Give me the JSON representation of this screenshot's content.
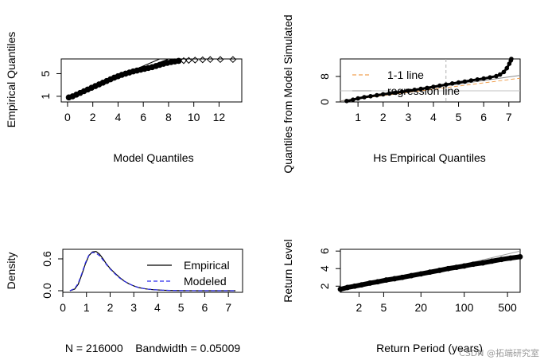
{
  "figure": {
    "watermark": "CSDN @拓端研究室"
  },
  "chart_data": [
    {
      "id": "p1",
      "type": "scatter",
      "title": "",
      "xlabel": "Model Quantiles",
      "ylabel": "Empirical Quantiles",
      "xlim": [
        -0.5,
        13.8
      ],
      "ylim": [
        0.0,
        7.6
      ],
      "xticks": [
        0,
        2,
        4,
        6,
        8,
        10,
        12
      ],
      "yticks": [
        1,
        5
      ],
      "points": [
        [
          0.1,
          0.8
        ],
        [
          0.4,
          1.0
        ],
        [
          0.7,
          1.3
        ],
        [
          1.0,
          1.6
        ],
        [
          1.3,
          1.9
        ],
        [
          1.6,
          2.2
        ],
        [
          1.9,
          2.5
        ],
        [
          2.2,
          2.8
        ],
        [
          2.5,
          3.1
        ],
        [
          2.8,
          3.4
        ],
        [
          3.1,
          3.7
        ],
        [
          3.4,
          4.0
        ],
        [
          3.7,
          4.3
        ],
        [
          4.0,
          4.55
        ],
        [
          4.3,
          4.8
        ],
        [
          4.6,
          5.0
        ],
        [
          4.9,
          5.2
        ],
        [
          5.2,
          5.4
        ],
        [
          5.5,
          5.55
        ],
        [
          5.8,
          5.7
        ],
        [
          6.1,
          5.85
        ],
        [
          6.4,
          6.0
        ],
        [
          6.7,
          6.15
        ],
        [
          7.0,
          6.35
        ],
        [
          7.3,
          6.55
        ],
        [
          7.6,
          6.75
        ],
        [
          7.9,
          6.9
        ],
        [
          8.2,
          7.05
        ],
        [
          8.5,
          7.15
        ],
        [
          8.8,
          7.25
        ],
        [
          9.2,
          7.3
        ],
        [
          9.6,
          7.35
        ],
        [
          10.1,
          7.4
        ],
        [
          10.7,
          7.45
        ],
        [
          11.3,
          7.5
        ],
        [
          12.1,
          7.5
        ],
        [
          13.1,
          7.5
        ]
      ],
      "reference_lines": [
        {
          "name": "line_a",
          "from": [
            0.1,
            0.7
          ],
          "to": [
            7.3,
            7.6
          ]
        },
        {
          "name": "line_b",
          "from": [
            0.1,
            0.8
          ],
          "to": [
            8.0,
            7.6
          ]
        }
      ]
    },
    {
      "id": "p2",
      "type": "scatter",
      "title": "",
      "xlabel": "Hs Empirical Quantiles",
      "ylabel": "Quantiles from Model Simulated",
      "xlim": [
        0.3,
        7.45
      ],
      "ylim": [
        0.0,
        13.5
      ],
      "xticks": [
        1,
        2,
        3,
        4,
        5,
        6,
        7
      ],
      "yticks": [
        0,
        8
      ],
      "vline_x": 4.5,
      "hline_y": 3.5,
      "points": [
        [
          0.55,
          0.3
        ],
        [
          0.8,
          0.7
        ],
        [
          1.0,
          1.1
        ],
        [
          1.25,
          1.5
        ],
        [
          1.5,
          1.8
        ],
        [
          1.75,
          2.1
        ],
        [
          2.0,
          2.4
        ],
        [
          2.25,
          2.65
        ],
        [
          2.5,
          2.9
        ],
        [
          2.75,
          3.2
        ],
        [
          3.0,
          3.5
        ],
        [
          3.25,
          3.8
        ],
        [
          3.5,
          4.1
        ],
        [
          3.75,
          4.4
        ],
        [
          4.0,
          4.75
        ],
        [
          4.25,
          5.1
        ],
        [
          4.5,
          5.45
        ],
        [
          4.75,
          5.8
        ],
        [
          5.0,
          6.1
        ],
        [
          5.25,
          6.4
        ],
        [
          5.5,
          6.75
        ],
        [
          5.75,
          7.05
        ],
        [
          6.0,
          7.35
        ],
        [
          6.25,
          7.7
        ],
        [
          6.5,
          8.1
        ],
        [
          6.65,
          8.6
        ],
        [
          6.8,
          9.4
        ],
        [
          6.92,
          10.6
        ],
        [
          7.02,
          12.0
        ],
        [
          7.08,
          13.0
        ],
        [
          7.1,
          13.5
        ]
      ],
      "reference_lines": [
        {
          "name": "one-to-one",
          "label": "1-1 line",
          "color": "#f0a050",
          "style": "dashed",
          "from": [
            0.3,
            0.3
          ],
          "to": [
            7.45,
            7.45
          ]
        },
        {
          "name": "regression",
          "label": "regression line",
          "color": "#888888",
          "style": "solid",
          "from": [
            0.3,
            0.3
          ],
          "to": [
            7.45,
            8.35
          ]
        }
      ],
      "legend": {
        "position": "top-left",
        "entries": [
          "1-1 line",
          "regression line"
        ]
      }
    },
    {
      "id": "p3",
      "type": "line",
      "title": "",
      "xlabel": "N = 216000    Bandwidth = 0.05009",
      "ylabel": "Density",
      "xlim": [
        0,
        7.6
      ],
      "ylim": [
        -0.03,
        0.78
      ],
      "xticks": [
        0,
        1,
        2,
        3,
        4,
        5,
        6,
        7
      ],
      "yticks": [
        0.0,
        0.6
      ],
      "series": [
        {
          "name": "Empirical",
          "color": "#000000",
          "style": "solid",
          "x": [
            0.3,
            0.5,
            0.65,
            0.8,
            0.95,
            1.1,
            1.25,
            1.4,
            1.55,
            1.7,
            1.85,
            2.0,
            2.2,
            2.4,
            2.6,
            2.8,
            3.0,
            3.2,
            3.5,
            3.8,
            4.2,
            4.6,
            5.0,
            5.5,
            6.0,
            6.5,
            7.0,
            7.3
          ],
          "y": [
            0.0,
            0.03,
            0.12,
            0.3,
            0.5,
            0.66,
            0.73,
            0.74,
            0.69,
            0.6,
            0.5,
            0.42,
            0.33,
            0.25,
            0.18,
            0.13,
            0.09,
            0.06,
            0.035,
            0.02,
            0.01,
            0.005,
            0.002,
            0.001,
            0.0,
            0.0,
            0.0,
            0.0
          ]
        },
        {
          "name": "Modeled",
          "color": "#2a2aee",
          "style": "dashed",
          "x": [
            0.3,
            0.5,
            0.65,
            0.8,
            0.95,
            1.1,
            1.25,
            1.4,
            1.55,
            1.7,
            1.85,
            2.0,
            2.2,
            2.4,
            2.6,
            2.8,
            3.0,
            3.2,
            3.5,
            3.8,
            4.2,
            4.6,
            5.0,
            5.5,
            6.0,
            6.5,
            7.0,
            7.3
          ],
          "y": [
            0.0,
            0.04,
            0.14,
            0.32,
            0.52,
            0.67,
            0.72,
            0.71,
            0.66,
            0.58,
            0.49,
            0.41,
            0.32,
            0.24,
            0.18,
            0.13,
            0.09,
            0.06,
            0.035,
            0.02,
            0.01,
            0.005,
            0.002,
            0.001,
            0.0,
            0.0,
            0.0,
            0.0
          ]
        }
      ],
      "legend": {
        "position": "right",
        "entries": [
          "Empirical",
          "Modeled"
        ]
      }
    },
    {
      "id": "p4",
      "type": "scatter",
      "title": "",
      "xlabel": "Return Period (years)",
      "ylabel": "Return Level",
      "xscale": "log",
      "xlim": [
        1.0,
        800
      ],
      "ylim": [
        1.3,
        6.2
      ],
      "xticks": [
        2,
        5,
        20,
        100,
        500
      ],
      "yticks": [
        2,
        4,
        6
      ],
      "points": [
        [
          1.0,
          1.65
        ],
        [
          1.3,
          1.85
        ],
        [
          1.7,
          2.0
        ],
        [
          2.2,
          2.15
        ],
        [
          3.0,
          2.35
        ],
        [
          4.0,
          2.5
        ],
        [
          5.5,
          2.7
        ],
        [
          7.5,
          2.85
        ],
        [
          10,
          3.0
        ],
        [
          14,
          3.2
        ],
        [
          20,
          3.4
        ],
        [
          28,
          3.6
        ],
        [
          40,
          3.8
        ],
        [
          55,
          4.0
        ],
        [
          75,
          4.15
        ],
        [
          100,
          4.3
        ],
        [
          140,
          4.5
        ],
        [
          200,
          4.65
        ],
        [
          280,
          4.85
        ],
        [
          400,
          5.05
        ],
        [
          560,
          5.2
        ],
        [
          800,
          5.35
        ]
      ],
      "reference_lines": [
        {
          "name": "upper-band",
          "color": "#a0a0a0",
          "style": "solid",
          "from": [
            100,
            4.5
          ],
          "to": [
            800,
            6.0
          ]
        }
      ]
    }
  ]
}
